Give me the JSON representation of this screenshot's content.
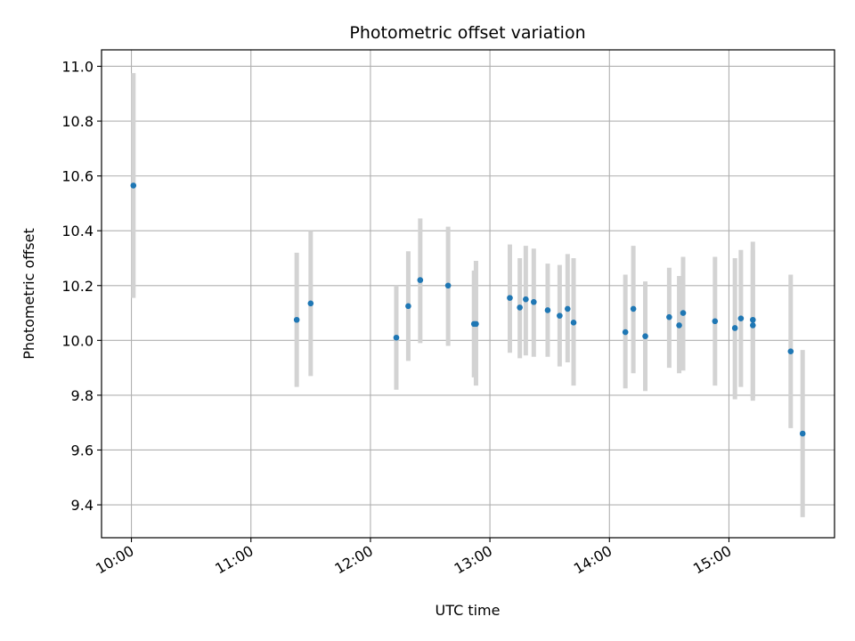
{
  "chart_data": {
    "type": "scatter",
    "title": "Photometric offset variation",
    "xlabel": "UTC time",
    "ylabel": "Photometric offset",
    "x_ticks": [
      "10:00",
      "11:00",
      "12:00",
      "13:00",
      "14:00",
      "15:00"
    ],
    "y_ticks": [
      "9.4",
      "9.6",
      "9.8",
      "10.0",
      "10.2",
      "10.4",
      "10.6",
      "10.8",
      "11.0"
    ],
    "xlim": [
      "09:45",
      "15:53"
    ],
    "ylim": [
      9.28,
      11.06
    ],
    "grid": true,
    "colors": {
      "point": "#1f77b4",
      "errorbar": "#d3d3d3",
      "grid": "#b0b0b0"
    },
    "points": [
      {
        "x": "10:01",
        "y": 10.565,
        "ylo": 10.155,
        "yhi": 10.975
      },
      {
        "x": "11:23",
        "y": 10.075,
        "ylo": 9.83,
        "yhi": 10.32
      },
      {
        "x": "11:30",
        "y": 10.135,
        "ylo": 9.87,
        "yhi": 10.4
      },
      {
        "x": "12:13",
        "y": 10.01,
        "ylo": 9.82,
        "yhi": 10.2
      },
      {
        "x": "12:19",
        "y": 10.125,
        "ylo": 9.925,
        "yhi": 10.325
      },
      {
        "x": "12:25",
        "y": 10.22,
        "ylo": 9.99,
        "yhi": 10.445
      },
      {
        "x": "12:39",
        "y": 10.2,
        "ylo": 9.98,
        "yhi": 10.415
      },
      {
        "x": "12:52",
        "y": 10.06,
        "ylo": 9.865,
        "yhi": 10.255
      },
      {
        "x": "12:53",
        "y": 10.06,
        "ylo": 9.835,
        "yhi": 10.29
      },
      {
        "x": "13:10",
        "y": 10.155,
        "ylo": 9.955,
        "yhi": 10.35
      },
      {
        "x": "13:15",
        "y": 10.12,
        "ylo": 9.935,
        "yhi": 10.3
      },
      {
        "x": "13:18",
        "y": 10.15,
        "ylo": 9.945,
        "yhi": 10.345
      },
      {
        "x": "13:22",
        "y": 10.14,
        "ylo": 9.94,
        "yhi": 10.335
      },
      {
        "x": "13:29",
        "y": 10.11,
        "ylo": 9.94,
        "yhi": 10.28
      },
      {
        "x": "13:35",
        "y": 10.09,
        "ylo": 9.905,
        "yhi": 10.275
      },
      {
        "x": "13:39",
        "y": 10.115,
        "ylo": 9.92,
        "yhi": 10.315
      },
      {
        "x": "13:42",
        "y": 10.065,
        "ylo": 9.835,
        "yhi": 10.3
      },
      {
        "x": "14:08",
        "y": 10.03,
        "ylo": 9.825,
        "yhi": 10.24
      },
      {
        "x": "14:12",
        "y": 10.115,
        "ylo": 9.88,
        "yhi": 10.345
      },
      {
        "x": "14:18",
        "y": 10.015,
        "ylo": 9.815,
        "yhi": 10.215
      },
      {
        "x": "14:30",
        "y": 10.085,
        "ylo": 9.9,
        "yhi": 10.265
      },
      {
        "x": "14:35",
        "y": 10.055,
        "ylo": 9.88,
        "yhi": 10.235
      },
      {
        "x": "14:37",
        "y": 10.1,
        "ylo": 9.89,
        "yhi": 10.305
      },
      {
        "x": "14:53",
        "y": 10.07,
        "ylo": 9.835,
        "yhi": 10.305
      },
      {
        "x": "15:03",
        "y": 10.045,
        "ylo": 9.785,
        "yhi": 10.3
      },
      {
        "x": "15:06",
        "y": 10.08,
        "ylo": 9.83,
        "yhi": 10.33
      },
      {
        "x": "15:12",
        "y": 10.075,
        "ylo": 9.79,
        "yhi": 10.36
      },
      {
        "x": "15:12",
        "y": 10.055,
        "ylo": 9.78,
        "yhi": 10.33
      },
      {
        "x": "15:31",
        "y": 9.96,
        "ylo": 9.68,
        "yhi": 10.24
      },
      {
        "x": "15:37",
        "y": 9.66,
        "ylo": 9.355,
        "yhi": 9.965
      }
    ]
  }
}
